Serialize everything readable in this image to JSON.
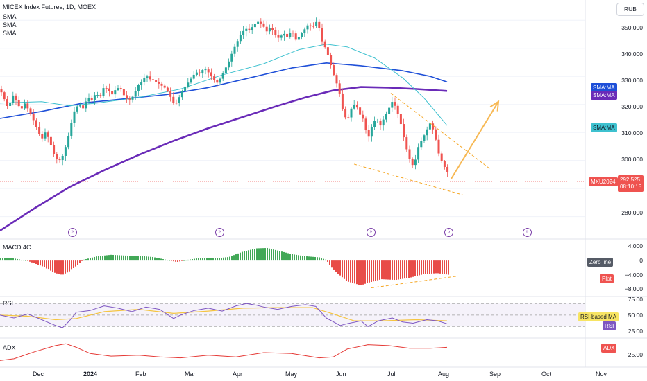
{
  "title": "MICEX Index Futures, 1D, MOEX",
  "legend_sma": [
    "SMA",
    "SMA",
    "SMA"
  ],
  "currency": "RUB",
  "panes": {
    "macd": "MACD 4C",
    "rsi": "RSI",
    "adx": "ADX"
  },
  "price_axis": [
    "350,000",
    "340,000",
    "330,000",
    "320,000",
    "310,000",
    "300,000",
    "280,000"
  ],
  "macd_axis": [
    "4,000",
    "0",
    "−4,000",
    "−8,000"
  ],
  "rsi_axis": [
    "75.00",
    "50.00",
    "25.00"
  ],
  "adx_axis": [
    "25.00"
  ],
  "tags": {
    "sma_blue": "SMA:MA",
    "sma_purple": "SMA:MA",
    "sma_teal": "SMA:MA",
    "symbol": "MXU2024",
    "last_price": "292,525",
    "countdown": "08:10:15",
    "zero_line": "Zero line",
    "plot": "Plot",
    "rsi_ma": "RSI-based MA",
    "rsi": "RSI",
    "adx": "ADX"
  },
  "x_labels": [
    "Dec",
    "2024",
    "Feb",
    "Mar",
    "Apr",
    "May",
    "Jun",
    "Jul",
    "Aug",
    "Sep",
    "Oct",
    "Nov"
  ],
  "colors": {
    "up": "#26a69a",
    "down": "#ef5350",
    "sma_blue": "#1e4fd8",
    "sma_purple": "#6a2bb8",
    "sma_teal": "#3ec1cf",
    "macd_up": "#2e9e45",
    "macd_down": "#e53935",
    "rsi": "#7e57c2",
    "rsi_ma": "#f5c542",
    "adx": "#e53935",
    "annotation": "#f5a623"
  },
  "chart_data": {
    "type": "candlestick",
    "title": "MICEX Index Futures, 1D, MOEX",
    "yunits": "RUB",
    "ylim": [
      272000,
      356000
    ],
    "last_price": 292525,
    "close_path": [
      [
        0,
        325500
      ],
      [
        6,
        322000
      ],
      [
        12,
        318500
      ],
      [
        18,
        323500
      ],
      [
        24,
        321000
      ],
      [
        30,
        318000
      ],
      [
        36,
        320500
      ],
      [
        42,
        317500
      ],
      [
        48,
        314500
      ],
      [
        54,
        311000
      ],
      [
        60,
        307500
      ],
      [
        66,
        310500
      ],
      [
        72,
        306500
      ],
      [
        78,
        302000
      ],
      [
        84,
        299500
      ],
      [
        90,
        301500
      ],
      [
        96,
        306000
      ],
      [
        102,
        312500
      ],
      [
        108,
        318500
      ],
      [
        114,
        320000
      ],
      [
        120,
        318500
      ],
      [
        126,
        322500
      ],
      [
        132,
        321500
      ],
      [
        138,
        324000
      ],
      [
        144,
        322500
      ],
      [
        150,
        326500
      ],
      [
        156,
        325000
      ],
      [
        162,
        323500
      ],
      [
        168,
        326000
      ],
      [
        174,
        325500
      ],
      [
        180,
        322500
      ],
      [
        186,
        321500
      ],
      [
        192,
        323000
      ],
      [
        198,
        326500
      ],
      [
        204,
        328000
      ],
      [
        210,
        330500
      ],
      [
        216,
        329000
      ],
      [
        222,
        328500
      ],
      [
        228,
        327500
      ],
      [
        234,
        326500
      ],
      [
        240,
        325500
      ],
      [
        246,
        322500
      ],
      [
        252,
        319500
      ],
      [
        258,
        322500
      ],
      [
        264,
        325500
      ],
      [
        270,
        327500
      ],
      [
        276,
        329500
      ],
      [
        282,
        331500
      ],
      [
        288,
        331000
      ],
      [
        294,
        333000
      ],
      [
        300,
        331500
      ],
      [
        306,
        329500
      ],
      [
        312,
        327500
      ],
      [
        318,
        329500
      ],
      [
        324,
        332500
      ],
      [
        330,
        335500
      ],
      [
        336,
        339500
      ],
      [
        342,
        342500
      ],
      [
        348,
        345500
      ],
      [
        354,
        347000
      ],
      [
        360,
        346500
      ],
      [
        366,
        348500
      ],
      [
        372,
        349500
      ],
      [
        378,
        348500
      ],
      [
        384,
        346000
      ],
      [
        390,
        347500
      ],
      [
        396,
        345000
      ],
      [
        402,
        343500
      ],
      [
        408,
        345500
      ],
      [
        414,
        344000
      ],
      [
        420,
        346500
      ],
      [
        426,
        343000
      ],
      [
        432,
        344500
      ],
      [
        438,
        346500
      ],
      [
        444,
        348500
      ],
      [
        450,
        347500
      ],
      [
        456,
        349500
      ],
      [
        460,
        347000
      ],
      [
        464,
        342500
      ],
      [
        470,
        339500
      ],
      [
        476,
        334500
      ],
      [
        482,
        329500
      ],
      [
        488,
        325500
      ],
      [
        494,
        317500
      ],
      [
        500,
        314000
      ],
      [
        506,
        318500
      ],
      [
        512,
        320500
      ],
      [
        518,
        316500
      ],
      [
        524,
        314500
      ],
      [
        530,
        307500
      ],
      [
        536,
        312500
      ],
      [
        542,
        315000
      ],
      [
        548,
        312500
      ],
      [
        554,
        315500
      ],
      [
        560,
        318500
      ],
      [
        566,
        321500
      ],
      [
        572,
        317500
      ],
      [
        578,
        312500
      ],
      [
        584,
        305500
      ],
      [
        590,
        300500
      ],
      [
        596,
        297500
      ],
      [
        602,
        304500
      ],
      [
        608,
        307500
      ],
      [
        614,
        310500
      ],
      [
        620,
        313500
      ],
      [
        626,
        309500
      ],
      [
        632,
        302500
      ],
      [
        638,
        298500
      ],
      [
        644,
        296500
      ],
      [
        648,
        292525
      ]
    ],
    "sma_blue_path": [
      [
        0,
        315000
      ],
      [
        60,
        317500
      ],
      [
        120,
        320500
      ],
      [
        180,
        322000
      ],
      [
        240,
        323500
      ],
      [
        300,
        326000
      ],
      [
        360,
        329500
      ],
      [
        420,
        333000
      ],
      [
        470,
        334800
      ],
      [
        520,
        333800
      ],
      [
        580,
        332000
      ],
      [
        620,
        330000
      ],
      [
        644,
        328000
      ]
    ],
    "sma_purple_path": [
      [
        0,
        275000
      ],
      [
        50,
        283000
      ],
      [
        100,
        290500
      ],
      [
        150,
        296500
      ],
      [
        200,
        302000
      ],
      [
        250,
        307000
      ],
      [
        300,
        311500
      ],
      [
        350,
        315500
      ],
      [
        400,
        319500
      ],
      [
        440,
        322500
      ],
      [
        480,
        325000
      ],
      [
        520,
        326200
      ],
      [
        560,
        326000
      ],
      [
        600,
        325500
      ],
      [
        644,
        324800
      ]
    ],
    "sma_teal_path": [
      [
        0,
        320500
      ],
      [
        60,
        321000
      ],
      [
        100,
        319500
      ],
      [
        140,
        320500
      ],
      [
        200,
        322500
      ],
      [
        260,
        325500
      ],
      [
        320,
        330500
      ],
      [
        380,
        334500
      ],
      [
        430,
        339500
      ],
      [
        470,
        341500
      ],
      [
        500,
        340500
      ],
      [
        540,
        336500
      ],
      [
        580,
        329500
      ],
      [
        610,
        322500
      ],
      [
        644,
        312500
      ]
    ],
    "annotations": {
      "channel_upper": [
        [
          563,
          324000
        ],
        [
          706,
          297000
        ]
      ],
      "channel_lower": [
        [
          510,
          298700
        ],
        [
          667,
          287700
        ]
      ],
      "forecast_arrow": [
        [
          650,
          293500
        ],
        [
          718,
          321000
        ]
      ]
    },
    "macd": {
      "ylim": [
        -10000,
        6000
      ],
      "histogram_path": [
        [
          0,
          800
        ],
        [
          20,
          600
        ],
        [
          40,
          -100
        ],
        [
          60,
          -1500
        ],
        [
          80,
          -3500
        ],
        [
          90,
          -4000
        ],
        [
          100,
          -3000
        ],
        [
          110,
          -1500
        ],
        [
          120,
          200
        ],
        [
          140,
          1200
        ],
        [
          160,
          1600
        ],
        [
          180,
          1400
        ],
        [
          200,
          1300
        ],
        [
          220,
          1000
        ],
        [
          240,
          200
        ],
        [
          255,
          -400
        ],
        [
          270,
          200
        ],
        [
          290,
          800
        ],
        [
          310,
          600
        ],
        [
          330,
          1000
        ],
        [
          350,
          2500
        ],
        [
          370,
          3400
        ],
        [
          385,
          3500
        ],
        [
          400,
          2800
        ],
        [
          420,
          1800
        ],
        [
          440,
          1200
        ],
        [
          460,
          900
        ],
        [
          470,
          200
        ],
        [
          480,
          -2500
        ],
        [
          500,
          -5800
        ],
        [
          520,
          -6900
        ],
        [
          530,
          -6200
        ],
        [
          550,
          -5200
        ],
        [
          570,
          -5400
        ],
        [
          590,
          -4800
        ],
        [
          610,
          -3800
        ],
        [
          630,
          -3500
        ],
        [
          648,
          -4000
        ]
      ],
      "trendline": [
        [
          535,
          -7600
        ],
        [
          660,
          -4300
        ]
      ]
    },
    "rsi": {
      "ylim": [
        10,
        80
      ],
      "levels": [
        70,
        50,
        30
      ],
      "rsi_path": [
        [
          0,
          50
        ],
        [
          20,
          45
        ],
        [
          40,
          52
        ],
        [
          60,
          42
        ],
        [
          80,
          32
        ],
        [
          90,
          28
        ],
        [
          100,
          40
        ],
        [
          110,
          55
        ],
        [
          130,
          58
        ],
        [
          150,
          66
        ],
        [
          170,
          62
        ],
        [
          190,
          56
        ],
        [
          210,
          64
        ],
        [
          230,
          60
        ],
        [
          250,
          44
        ],
        [
          260,
          50
        ],
        [
          280,
          58
        ],
        [
          300,
          62
        ],
        [
          320,
          57
        ],
        [
          340,
          66
        ],
        [
          355,
          70
        ],
        [
          370,
          67
        ],
        [
          380,
          64
        ],
        [
          400,
          60
        ],
        [
          420,
          65
        ],
        [
          440,
          68
        ],
        [
          455,
          65
        ],
        [
          470,
          45
        ],
        [
          490,
          32
        ],
        [
          500,
          35
        ],
        [
          520,
          40
        ],
        [
          530,
          30
        ],
        [
          545,
          40
        ],
        [
          565,
          45
        ],
        [
          580,
          38
        ],
        [
          595,
          36
        ],
        [
          615,
          42
        ],
        [
          630,
          40
        ],
        [
          644,
          35
        ]
      ],
      "ma_path": [
        [
          0,
          50
        ],
        [
          40,
          48
        ],
        [
          80,
          42
        ],
        [
          110,
          44
        ],
        [
          150,
          56
        ],
        [
          200,
          60
        ],
        [
          250,
          53
        ],
        [
          300,
          57
        ],
        [
          350,
          62
        ],
        [
          400,
          63
        ],
        [
          450,
          63
        ],
        [
          480,
          52
        ],
        [
          510,
          40
        ],
        [
          550,
          40
        ],
        [
          600,
          42
        ],
        [
          644,
          40
        ]
      ]
    },
    "adx": {
      "ylim": [
        10,
        40
      ],
      "path": [
        [
          0,
          16
        ],
        [
          20,
          18
        ],
        [
          50,
          26
        ],
        [
          80,
          33
        ],
        [
          95,
          35
        ],
        [
          110,
          31
        ],
        [
          130,
          24
        ],
        [
          160,
          21
        ],
        [
          200,
          22
        ],
        [
          230,
          20
        ],
        [
          260,
          19
        ],
        [
          300,
          22
        ],
        [
          340,
          20
        ],
        [
          380,
          25
        ],
        [
          420,
          24
        ],
        [
          460,
          19
        ],
        [
          480,
          20
        ],
        [
          500,
          29
        ],
        [
          530,
          34
        ],
        [
          560,
          33
        ],
        [
          590,
          30
        ],
        [
          620,
          30
        ],
        [
          644,
          31
        ]
      ]
    }
  }
}
